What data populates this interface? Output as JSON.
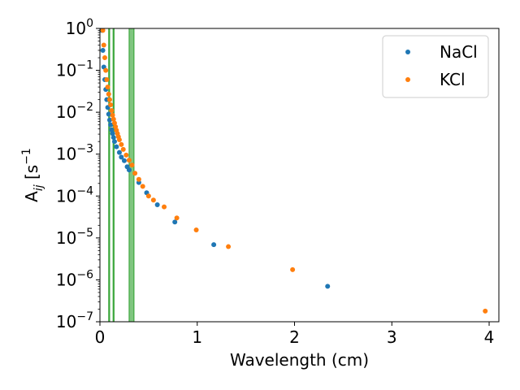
{
  "chart_data": {
    "type": "scatter",
    "xlabel": "Wavelength (cm)",
    "ylabel": {
      "base": "A",
      "sub": "ij",
      "bracket_open": " [s",
      "sup": "−1",
      "bracket_close": "]"
    },
    "xlim": [
      0,
      4.1
    ],
    "ylim": [
      1e-07,
      1
    ],
    "yscale": "log",
    "grid": false,
    "legend_position": "top-right",
    "x_ticks": [
      {
        "value": 0,
        "label": "0"
      },
      {
        "value": 1,
        "label": "1"
      },
      {
        "value": 2,
        "label": "2"
      },
      {
        "value": 3,
        "label": "3"
      },
      {
        "value": 4,
        "label": "4"
      }
    ],
    "y_ticks": [
      {
        "value": 1e-07,
        "base": "10",
        "exp": "−7"
      },
      {
        "value": 1e-06,
        "base": "10",
        "exp": "−6"
      },
      {
        "value": 1e-05,
        "base": "10",
        "exp": "−5"
      },
      {
        "value": 0.0001,
        "base": "10",
        "exp": "−4"
      },
      {
        "value": 0.001,
        "base": "10",
        "exp": "−3"
      },
      {
        "value": 0.01,
        "base": "10",
        "exp": "−2"
      },
      {
        "value": 0.1,
        "base": "10",
        "exp": "−1"
      },
      {
        "value": 1,
        "base": "10",
        "exp": "0"
      }
    ],
    "bands": [
      {
        "x": [
          0.09,
          0.095
        ],
        "color": "#2ca02c",
        "opacity": 0.6
      },
      {
        "x": [
          0.135,
          0.14
        ],
        "color": "#2ca02c",
        "opacity": 0.6
      },
      {
        "x": [
          0.3,
          0.35
        ],
        "color": "#2ca02c",
        "opacity": 0.6
      }
    ],
    "series": [
      {
        "name": "NaCl",
        "color": "#1f77b4",
        "points": [
          [
            0.02,
            0.9
          ],
          [
            0.03,
            0.3
          ],
          [
            0.04,
            0.12
          ],
          [
            0.05,
            0.06
          ],
          [
            0.06,
            0.035
          ],
          [
            0.07,
            0.02
          ],
          [
            0.08,
            0.013
          ],
          [
            0.09,
            0.009
          ],
          [
            0.1,
            0.0065
          ],
          [
            0.11,
            0.005
          ],
          [
            0.12,
            0.0038
          ],
          [
            0.13,
            0.0031
          ],
          [
            0.14,
            0.0025
          ],
          [
            0.15,
            0.002
          ],
          [
            0.17,
            0.0015
          ],
          [
            0.2,
            0.0011
          ],
          [
            0.22,
            0.00085
          ],
          [
            0.25,
            0.0007
          ],
          [
            0.28,
            0.0005
          ],
          [
            0.3,
            0.00042
          ],
          [
            0.4,
            0.00021
          ],
          [
            0.48,
            0.00012
          ],
          [
            0.59,
            6.2e-05
          ],
          [
            0.77,
            2.4e-05
          ],
          [
            1.17,
            6.9e-06
          ],
          [
            2.34,
            7e-07
          ]
        ]
      },
      {
        "name": "KCl",
        "color": "#ff7f0e",
        "points": [
          [
            0.03,
            0.9
          ],
          [
            0.04,
            0.4
          ],
          [
            0.05,
            0.2
          ],
          [
            0.06,
            0.1
          ],
          [
            0.07,
            0.06
          ],
          [
            0.08,
            0.04
          ],
          [
            0.09,
            0.027
          ],
          [
            0.1,
            0.02
          ],
          [
            0.11,
            0.015
          ],
          [
            0.12,
            0.011
          ],
          [
            0.13,
            0.0085
          ],
          [
            0.14,
            0.0068
          ],
          [
            0.15,
            0.0055
          ],
          [
            0.16,
            0.0045
          ],
          [
            0.17,
            0.0037
          ],
          [
            0.18,
            0.0031
          ],
          [
            0.19,
            0.0026
          ],
          [
            0.2,
            0.0022
          ],
          [
            0.22,
            0.0017
          ],
          [
            0.24,
            0.0013
          ],
          [
            0.27,
            0.00095
          ],
          [
            0.3,
            0.00072
          ],
          [
            0.33,
            0.00055
          ],
          [
            0.36,
            0.00035
          ],
          [
            0.4,
            0.00025
          ],
          [
            0.44,
            0.00017
          ],
          [
            0.5,
            0.0001
          ],
          [
            0.55,
            8e-05
          ],
          [
            0.66,
            5.5e-05
          ],
          [
            0.79,
            3e-05
          ],
          [
            0.99,
            1.55e-05
          ],
          [
            1.32,
            6.2e-06
          ],
          [
            1.98,
            1.75e-06
          ],
          [
            3.96,
            1.8e-07
          ]
        ]
      }
    ]
  }
}
